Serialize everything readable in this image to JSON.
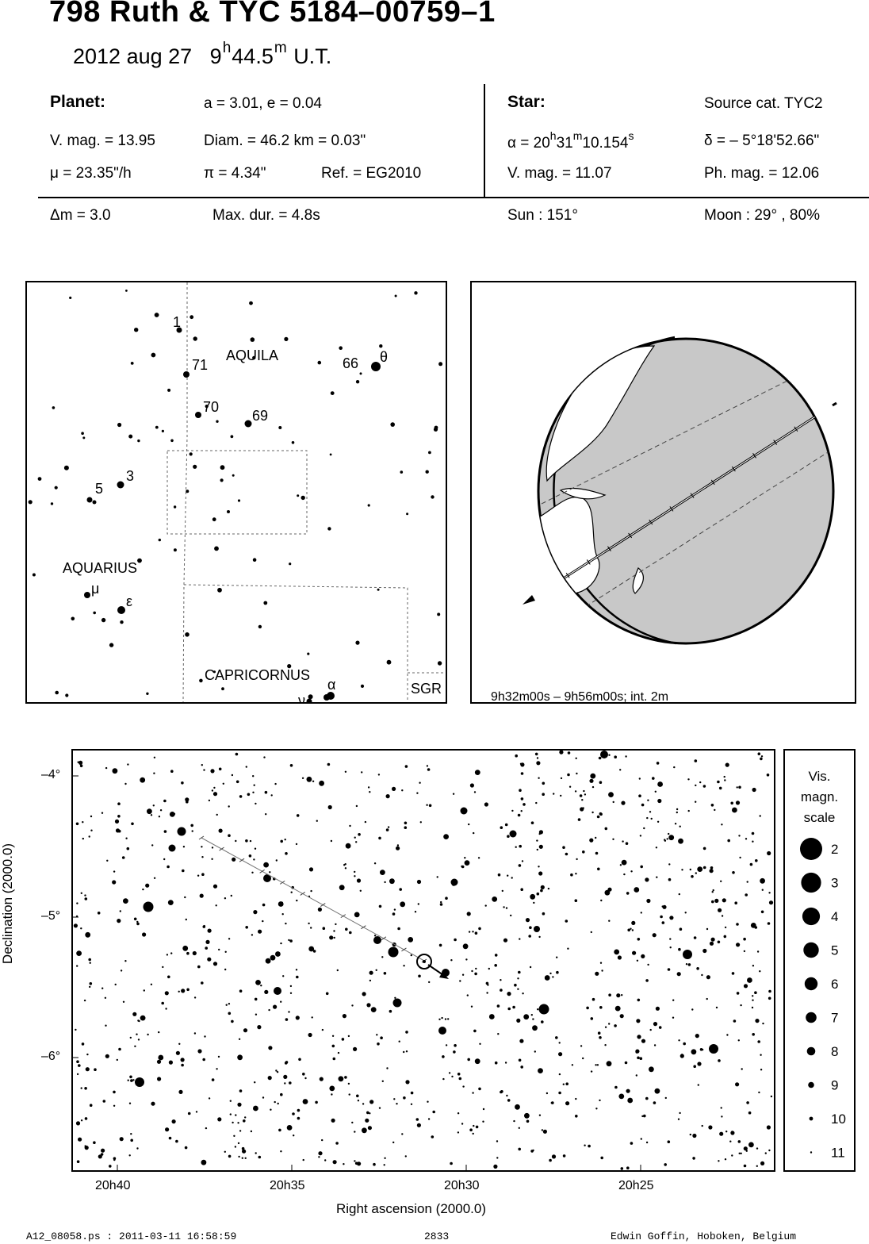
{
  "header": {
    "title": "798 Ruth  &  TYC 5184–00759–1",
    "date": "2012 aug 27",
    "time_h": "9",
    "time_h_unit": "h",
    "time_m": "44.5",
    "time_m_unit": "m",
    "time_suffix": "U.T."
  },
  "planet": {
    "heading": "Planet:",
    "orbit": "a = 3.01, e = 0.04",
    "vmag": "V. mag. = 13.95",
    "diam": "Diam. = 46.2 km = 0.03\"",
    "mu": "μ =  23.35\"/h",
    "pi": "π =  4.34\"",
    "ref": "Ref. = EG2010"
  },
  "star": {
    "heading": "Star:",
    "source": "Source cat.  TYC2",
    "alpha_prefix": "α = 20",
    "alpha_h": "h",
    "alpha_mid": "31",
    "alpha_m": "m",
    "alpha_tail": "10.154",
    "alpha_s": "s",
    "delta": "δ = – 5°18'52.66\"",
    "vmag": "V. mag. = 11.07",
    "phmag": "Ph. mag. = 12.06"
  },
  "event": {
    "dm": "Δm = 3.0",
    "maxdur": "Max. dur. = 4.8s",
    "sun": "Sun : 151°",
    "moon": "Moon :  29° , 80%"
  },
  "finder": {
    "labels": {
      "aquila": "AQUILA",
      "aquarius": "AQUARIUS",
      "capricornus": "CAPRICORNUS",
      "sgr": "SGR",
      "n1": "1",
      "n71": "71",
      "n70": "70",
      "n69": "69",
      "n66": "66",
      "n3": "3",
      "n5": "5",
      "theta": "θ",
      "mu": "μ",
      "eps": "ε",
      "alpha": "α",
      "nu": "ν"
    }
  },
  "globe": {
    "caption": "9h32m00s –  9h56m00s; int.  2m"
  },
  "chart_data": {
    "type": "scatter",
    "xlabel": "Right ascension (2000.0)",
    "ylabel": "Declination (2000.0)",
    "x_ticks": [
      "20h40",
      "20h35",
      "20h30",
      "20h25"
    ],
    "y_ticks": [
      "–4°",
      "–5°",
      "–6°"
    ],
    "target_star": {
      "ra": "20h31m10.154s",
      "dec": "–5°18'52.66\""
    },
    "legend": {
      "title_lines": [
        "Vis.",
        "magn.",
        "scale"
      ],
      "mags": [
        2,
        3,
        4,
        5,
        6,
        7,
        8,
        9,
        10,
        11
      ]
    }
  },
  "footer": {
    "left": "A12_08058.ps : 2011-03-11 16:58:59",
    "center": "2833",
    "right": "Edwin Goffin, Hoboken, Belgium"
  }
}
